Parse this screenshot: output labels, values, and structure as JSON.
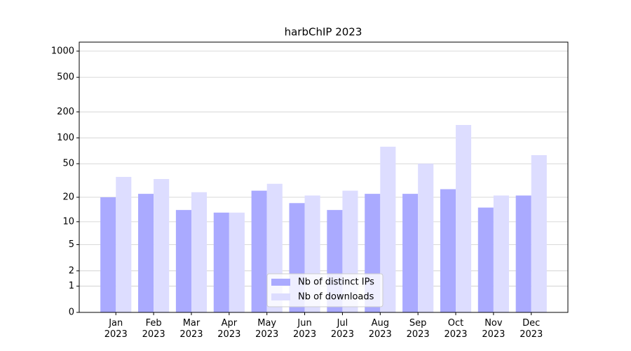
{
  "chart_data": {
    "type": "bar",
    "title": "harbChIP 2023",
    "scale": "log1p",
    "categories": [
      "Jan\n2023",
      "Feb\n2023",
      "Mar\n2023",
      "Apr\n2023",
      "May\n2023",
      "Jun\n2023",
      "Jul\n2023",
      "Aug\n2023",
      "Sep\n2023",
      "Oct\n2023",
      "Nov\n2023",
      "Dec\n2023"
    ],
    "series": [
      {
        "name": "Nb of distinct IPs",
        "color": "#aaaaff",
        "values": [
          20,
          22,
          14,
          13,
          24,
          17,
          14,
          22,
          22,
          25,
          15,
          21
        ]
      },
      {
        "name": "Nb of downloads",
        "color": "#ddddff",
        "values": [
          35,
          33,
          23,
          13,
          29,
          21,
          24,
          79,
          50,
          141,
          21,
          63
        ]
      }
    ],
    "ylim": [
      0,
      1270
    ],
    "yticks": [
      0,
      1,
      2,
      5,
      10,
      20,
      50,
      100,
      200,
      500,
      1000
    ],
    "grid": true,
    "legend": "lower center"
  }
}
